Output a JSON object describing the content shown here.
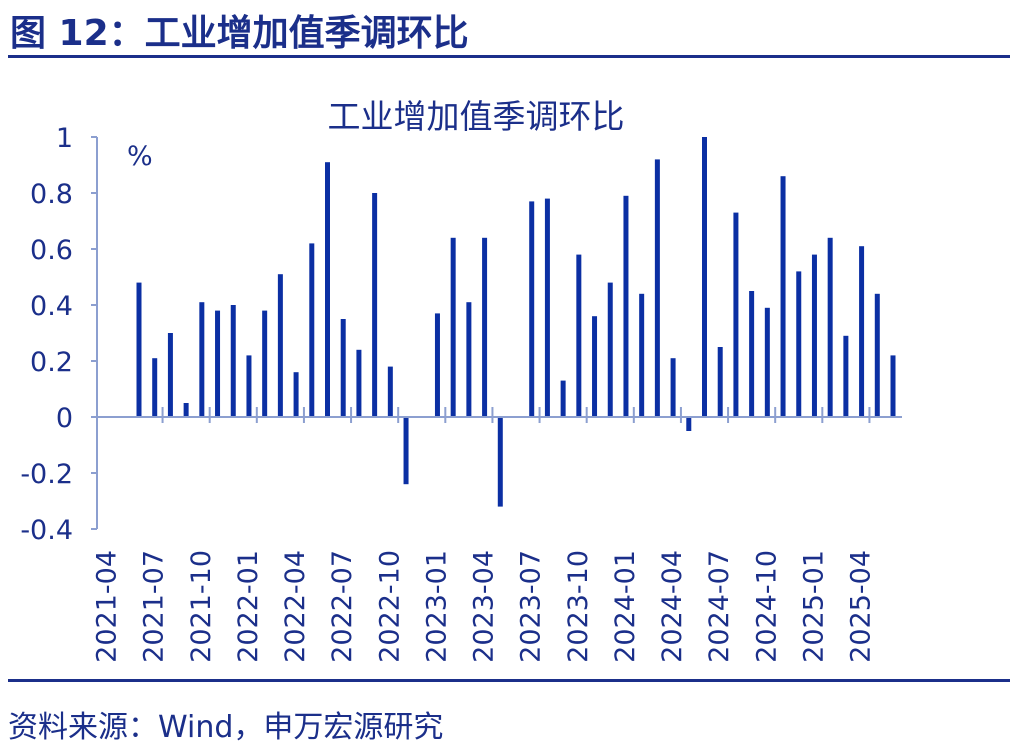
{
  "header": {
    "figure_title": "图 12：工业增加值季调环比"
  },
  "footer": {
    "source": "资料来源：Wind，申万宏源研究"
  },
  "colors": {
    "accent": "#1b2f8a",
    "bar": "#0b2fa3",
    "axis": "#8c9fd0",
    "text": "#1b2f8a"
  },
  "chart_data": {
    "type": "bar",
    "title": "工业增加值季调环比",
    "unit_label": "%",
    "ylim": [
      -0.4,
      1
    ],
    "yticks": [
      "1",
      "0.8",
      "0.6",
      "0.4",
      "0.2",
      "0",
      "-0.2",
      "-0.4"
    ],
    "ytick_values": [
      1,
      0.8,
      0.6,
      0.4,
      0.2,
      0,
      -0.2,
      -0.4
    ],
    "grid": false,
    "legend": "none",
    "xtick_labels": [
      "2021-04",
      "2021-07",
      "2021-10",
      "2022-01",
      "2022-04",
      "2022-07",
      "2022-10",
      "2023-01",
      "2023-04",
      "2023-07",
      "2023-10",
      "2024-01",
      "2024-04",
      "2024-07",
      "2024-10",
      "2025-01",
      "2025-04"
    ],
    "categories": [
      "2021-04",
      "2021-05",
      "2021-06",
      "2021-07",
      "2021-08",
      "2021-09",
      "2021-10",
      "2021-11",
      "2021-12",
      "2022-01",
      "2022-02",
      "2022-03",
      "2022-04",
      "2022-05",
      "2022-06",
      "2022-07",
      "2022-08",
      "2022-09",
      "2022-10",
      "2022-11",
      "2022-12",
      "2023-01",
      "2023-02",
      "2023-03",
      "2023-04",
      "2023-05",
      "2023-06",
      "2023-07",
      "2023-08",
      "2023-09",
      "2023-10",
      "2023-11",
      "2023-12",
      "2024-01",
      "2024-02",
      "2024-03",
      "2024-04",
      "2024-05",
      "2024-06",
      "2024-07",
      "2024-08",
      "2024-09",
      "2024-10",
      "2024-11",
      "2024-12",
      "2025-01",
      "2025-02",
      "2025-03",
      "2025-04"
    ],
    "values": [
      0.48,
      0.21,
      0.3,
      0.05,
      0.41,
      0.38,
      0.4,
      0.22,
      0.38,
      0.51,
      0.16,
      0.62,
      0.91,
      0.35,
      0.24,
      0.8,
      0.18,
      -0.24,
      null,
      0.37,
      0.64,
      0.41,
      0.64,
      -0.32,
      null,
      0.77,
      0.78,
      0.13,
      0.58,
      0.36,
      0.48,
      0.79,
      0.44,
      0.92,
      0.21,
      -0.05,
      1.0,
      0.25,
      0.73,
      0.45,
      0.39,
      0.86,
      0.52,
      0.58,
      0.64,
      0.29,
      0.61,
      0.44,
      0.22
    ]
  }
}
